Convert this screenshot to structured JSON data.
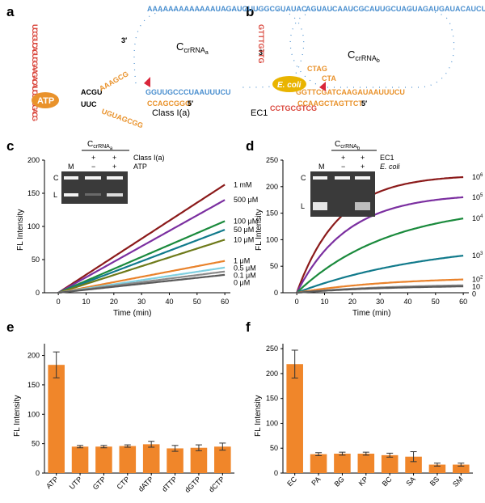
{
  "panel_labels": {
    "a": "a",
    "b": "b",
    "c": "c",
    "d": "d",
    "e": "e",
    "f": "f"
  },
  "diagram_a": {
    "title": "C",
    "title_sub": "crRNA",
    "title_subsub": "a",
    "loop_seq": "AAAAAAAAAAAAAUAGAUGUUGGCGUAUAC",
    "lower_seq": "GGUUGCCCUAAUUUCU",
    "three_prime": "3′",
    "five_prime": "5′",
    "bottom_seq": "CCAGCGGG",
    "left_seq": "ACGU",
    "left_seq2": "UUC",
    "aptamer_label": "ATP",
    "class_label": "Class I(a)",
    "aptamer_nts": "UCGGUCAGUGGAAGACAUCGUGGACG",
    "linker_a": "AAAGCG",
    "linker_b": "UGUAGCGG"
  },
  "diagram_b": {
    "title": "C",
    "title_sub": "crRNA",
    "title_subsub": "b",
    "loop_seq": "AGUAUCAAUCGCAUUGCUAGUAGAUGAUACAUCU",
    "lower_seq": "GGTTCGATCAAGAUAAUUUCU",
    "bottom_seq": "CCAAGCTAGTTCT",
    "three_prime": "3′",
    "five_prime": "5′",
    "target_label": "E. coli",
    "ec_label": "EC1",
    "left_seq": "GTTTGTTG",
    "mid_seq": "CTAG",
    "mid_seq2": "CTA",
    "ec_loop": "CCTGCGTCG"
  },
  "chart_c": {
    "type": "line",
    "xlabel": "Time (min)",
    "ylabel": "FL Intensity",
    "xlim": [
      -5,
      62
    ],
    "ylim": [
      0,
      200
    ],
    "xticks": [
      0,
      10,
      20,
      30,
      40,
      50,
      60
    ],
    "yticks": [
      0,
      50,
      100,
      150,
      200
    ],
    "series": [
      {
        "name": "1 mM",
        "color": "#8b1a1a",
        "final": 163
      },
      {
        "name": "500 μM",
        "color": "#7b2fa0",
        "final": 140
      },
      {
        "name": "100 μM",
        "color": "#1a8a3c",
        "final": 108
      },
      {
        "name": "50 μM",
        "color": "#117a8b",
        "final": 95
      },
      {
        "name": "10 μM",
        "color": "#6e7a1a",
        "final": 80
      },
      {
        "name": "1 μM",
        "color": "#e9822b",
        "final": 48
      },
      {
        "name": "0.5 μM",
        "color": "#7fcfe0",
        "final": 38
      },
      {
        "name": "0.1 μM",
        "color": "#8a8a8a",
        "final": 32
      },
      {
        "name": "0 μM",
        "color": "#5a5a5a",
        "final": 27
      }
    ],
    "gel": {
      "header": "C",
      "header_sub": "crRNA",
      "header_subsub": "a",
      "row1_label": "Class I(a)",
      "row2_label": "ATP",
      "row1": [
        "+",
        "+"
      ],
      "row2": [
        "−",
        "+"
      ],
      "lane_m": "M",
      "band_c": "C",
      "band_l": "L"
    }
  },
  "chart_d": {
    "type": "line",
    "xlabel": "Time (min)",
    "ylabel": "FL Intensity",
    "xlim": [
      -5,
      62
    ],
    "ylim": [
      0,
      250
    ],
    "xticks": [
      0,
      10,
      20,
      30,
      40,
      50,
      60
    ],
    "yticks": [
      0,
      50,
      100,
      150,
      200,
      250
    ],
    "series": [
      {
        "name": "10",
        "sup": "6",
        "color": "#8b1a1a",
        "final": 218,
        "k": 0.065
      },
      {
        "name": "10",
        "sup": "5",
        "color": "#7b2fa0",
        "final": 180,
        "k": 0.055
      },
      {
        "name": "10",
        "sup": "4",
        "color": "#1a8a3c",
        "final": 140,
        "k": 0.03
      },
      {
        "name": "10",
        "sup": "3",
        "color": "#117a8b",
        "final": 70,
        "k": 0.02
      },
      {
        "name": "10",
        "sup": "2",
        "color": "#e9822b",
        "final": 25,
        "k": 0.03
      },
      {
        "name": "10",
        "sup": "",
        "color": "#8a8a8a",
        "final": 14,
        "k": 0.03
      },
      {
        "name": "0",
        "sup": "",
        "color": "#5a5a5a",
        "final": 12,
        "k": 0.03
      }
    ],
    "gel": {
      "header": "C",
      "header_sub": "crRNA",
      "header_subsub": "b",
      "row1_label": "EC1",
      "row2_label": "E. coli",
      "row1": [
        "+",
        "+"
      ],
      "row2": [
        "−",
        "+"
      ],
      "lane_m": "M",
      "band_c": "C",
      "band_l": "L"
    }
  },
  "chart_e": {
    "type": "bar",
    "ylabel": "FL Intensity",
    "categories": [
      "ATP",
      "UTP",
      "GTP",
      "CTP",
      "dATP",
      "dTTP",
      "dGTP",
      "dCTP"
    ],
    "values": [
      184,
      45,
      45,
      46,
      49,
      42,
      43,
      45
    ],
    "errors": [
      22,
      2,
      2,
      2,
      5,
      5,
      5,
      6
    ],
    "ylim": [
      0,
      220
    ],
    "yticks": [
      0,
      50,
      100,
      150,
      200
    ],
    "color": "#f0862a"
  },
  "chart_f": {
    "type": "bar",
    "ylabel": "FL Intensity",
    "categories": [
      "EC",
      "PA",
      "BG",
      "KP",
      "BC",
      "SA",
      "BS",
      "SM"
    ],
    "values": [
      219,
      38,
      39,
      39,
      36,
      33,
      17,
      17
    ],
    "errors": [
      28,
      3,
      3,
      3,
      4,
      10,
      3,
      3
    ],
    "ylim": [
      0,
      260
    ],
    "yticks": [
      0,
      50,
      100,
      150,
      200,
      250
    ],
    "color": "#f0862a"
  }
}
